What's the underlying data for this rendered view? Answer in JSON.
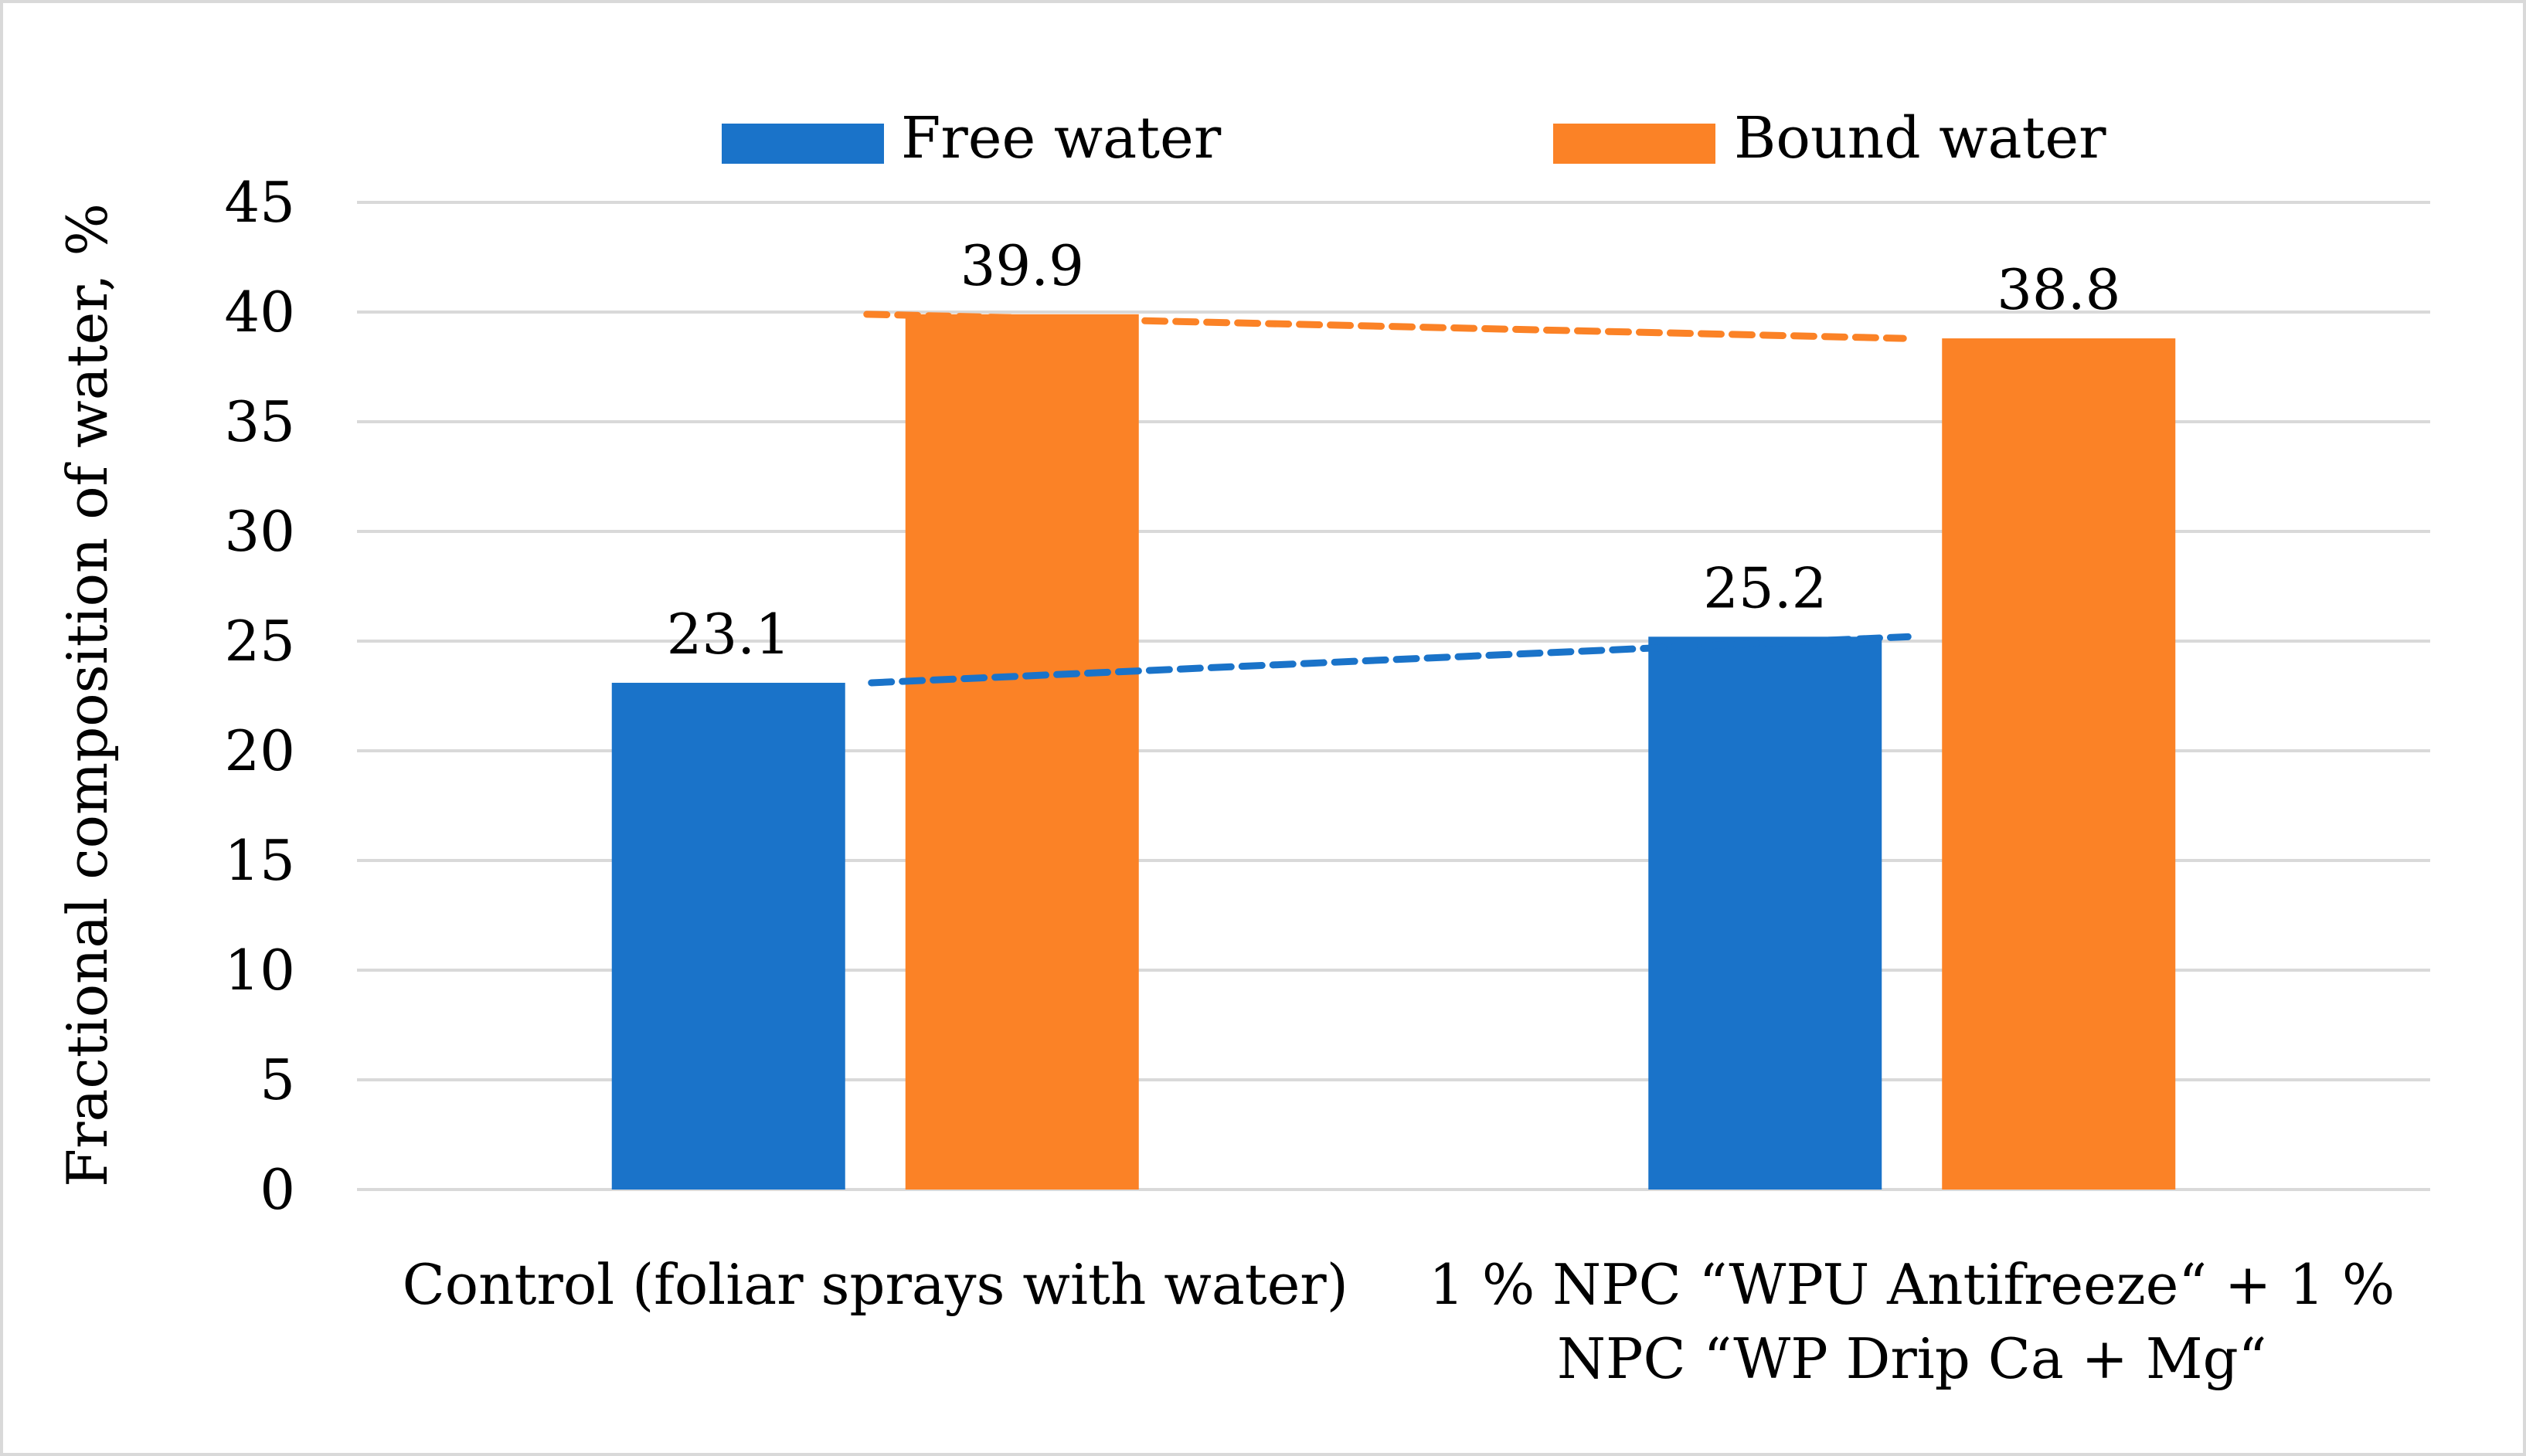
{
  "chart_data": {
    "type": "bar",
    "title": "",
    "xlabel": "",
    "ylabel": "Fractional composition of water, %",
    "ylim": [
      0,
      45
    ],
    "yticks": [
      0,
      5,
      10,
      15,
      20,
      25,
      30,
      35,
      40,
      45
    ],
    "ytick_labels": [
      "0",
      "5",
      "10",
      "15",
      "20",
      "25",
      "30",
      "35",
      "40",
      "45"
    ],
    "grid": true,
    "legend_position": "top",
    "categories": [
      [
        "Control (foliar sprays with water)"
      ],
      [
        "1 % NPC “WPU Antifreeze“ + 1 %",
        "NPC “WP Drip Ca + Mg“"
      ]
    ],
    "series": [
      {
        "name": "Free water",
        "color": "#1a73c9",
        "values": [
          23.1,
          25.2
        ],
        "labels": [
          "23.1",
          "25.2"
        ]
      },
      {
        "name": "Bound water",
        "color": "#fb8226",
        "values": [
          39.9,
          38.8
        ],
        "labels": [
          "39.9",
          "38.8"
        ]
      }
    ],
    "trendlines": [
      {
        "series": "Free water",
        "style": "dashed",
        "from": 23.1,
        "to": 25.2
      },
      {
        "series": "Bound water",
        "style": "dashed",
        "from": 39.9,
        "to": 38.8
      }
    ]
  }
}
